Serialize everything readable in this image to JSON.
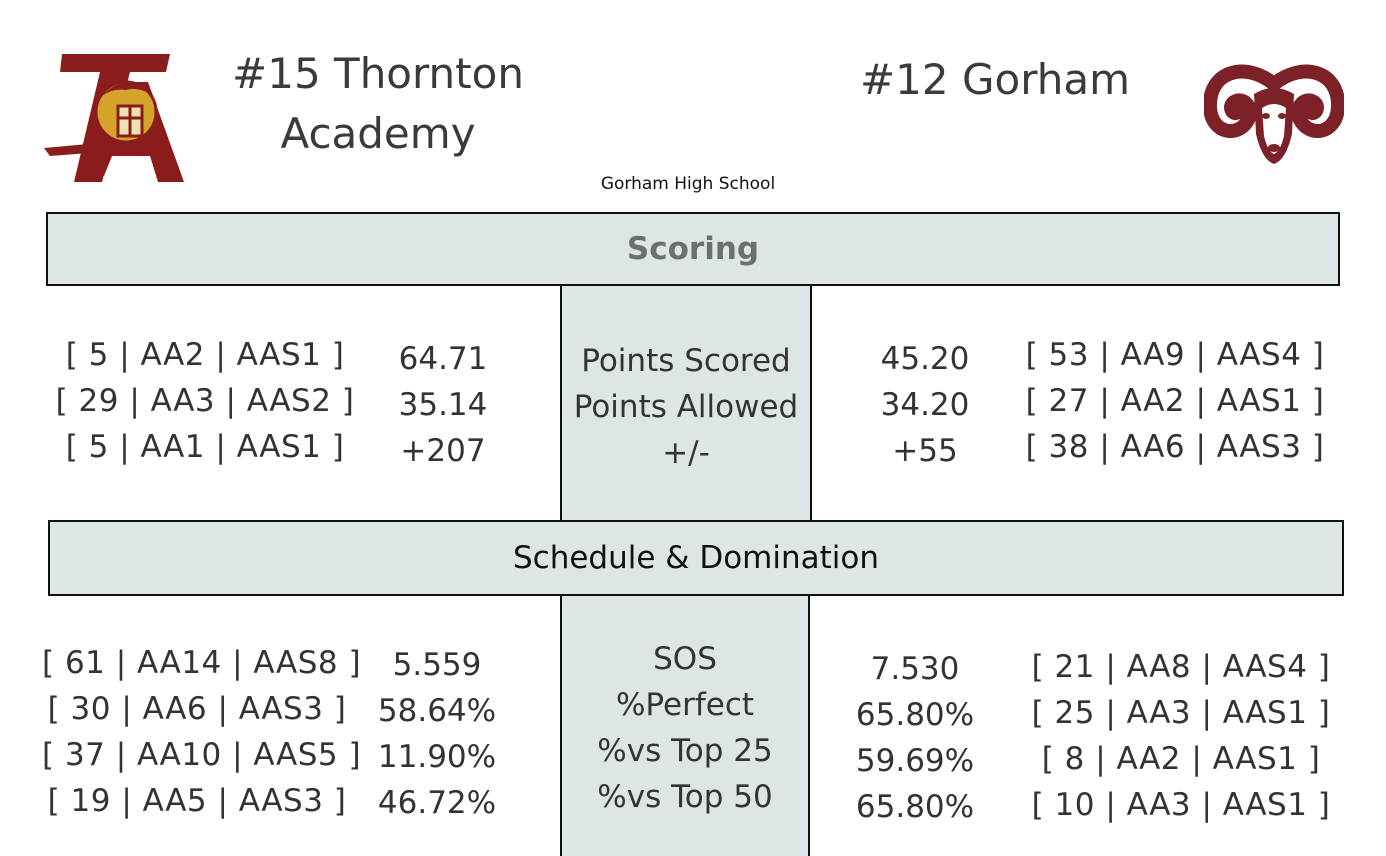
{
  "away": {
    "title": "#15 Thornton Academy",
    "logo": "thornton-academy-trojan-logo",
    "logo_colors": {
      "primary": "#8a1c1c",
      "secondary": "#d4a32a"
    }
  },
  "home": {
    "title": "#12 Gorham",
    "logo": "gorham-ram-logo",
    "logo_colors": {
      "primary": "#7d2128"
    }
  },
  "venue": "Gorham High School",
  "scoring": {
    "header": "Scoring",
    "labels": [
      "Points Scored",
      "Points Allowed",
      "+/-"
    ],
    "away_ranks": [
      "[ 5 | AA2 | AAS1 ]",
      "[ 29 | AA3 | AAS2 ]",
      "[ 5 | AA1 | AAS1 ]"
    ],
    "away_values": [
      "64.71",
      "35.14",
      "+207"
    ],
    "home_values": [
      "45.20",
      "34.20",
      "+55"
    ],
    "home_ranks": [
      "[ 53 | AA9 | AAS4 ]",
      "[ 27 | AA2 | AAS1 ]",
      "[ 38 | AA6 | AAS3 ]"
    ]
  },
  "schedule": {
    "header": "Schedule & Domination",
    "labels": [
      "SOS",
      "%Perfect",
      "%vs Top 25",
      "%vs Top 50"
    ],
    "away_ranks": [
      "[ 61 | AA14 | AAS8 ]",
      "[ 30 | AA6 | AAS3 ]",
      "[ 37 | AA10 | AAS5 ]",
      "[ 19 | AA5 | AAS3 ]"
    ],
    "away_values": [
      "5.559",
      "58.64%",
      "11.90%",
      "46.72%"
    ],
    "home_values": [
      "7.530",
      "65.80%",
      "59.69%",
      "65.80%"
    ],
    "home_ranks": [
      "[ 21 | AA8 | AAS4 ]",
      "[ 25 | AA3 | AAS1 ]",
      "[ 8 | AA2 | AAS1 ]",
      "[ 10 | AA3 | AAS1 ]"
    ]
  },
  "colors": {
    "band_fill": "#dde5e6",
    "border": "#111111",
    "text": "#333333"
  }
}
